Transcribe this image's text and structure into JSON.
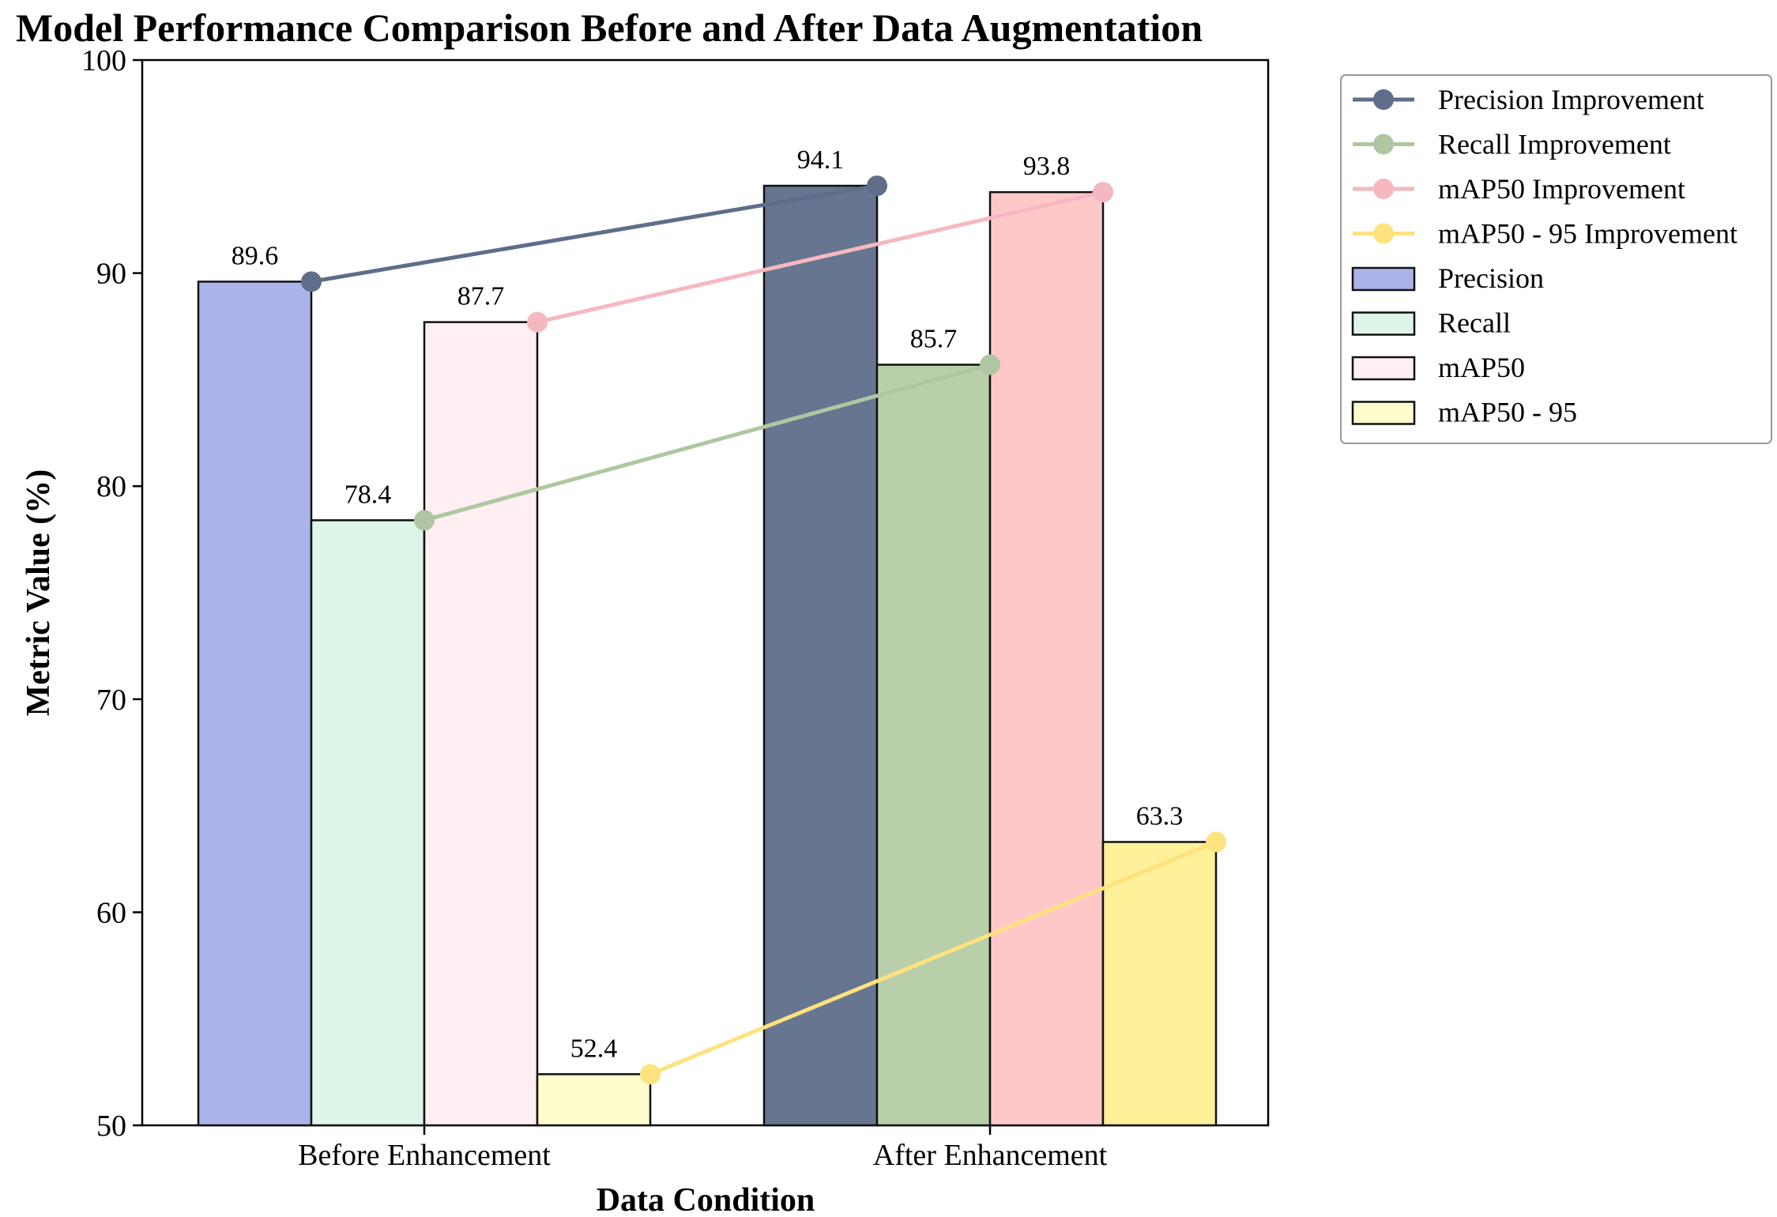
{
  "chart_data": {
    "type": "bar",
    "title": "Model Performance Comparison Before and After Data Augmentation",
    "xlabel": "Data Condition",
    "ylabel": "Metric Value (%)",
    "ylim": [
      50,
      100
    ],
    "yticks": [
      50,
      60,
      70,
      80,
      90,
      100
    ],
    "categories": [
      "Before Enhancement",
      "After Enhancement"
    ],
    "series": [
      {
        "name": "Precision",
        "values": [
          89.6,
          94.1
        ],
        "colors": [
          "#aab4ea",
          "#667590"
        ]
      },
      {
        "name": "Recall",
        "values": [
          78.4,
          85.7
        ],
        "colors": [
          "#def5ea",
          "#b9cfaa"
        ]
      },
      {
        "name": "mAP50",
        "values": [
          87.7,
          93.8
        ],
        "colors": [
          "#ffeef2",
          "#ffc8c8"
        ]
      },
      {
        "name": "mAP50 - 95",
        "values": [
          52.4,
          63.3
        ],
        "colors": [
          "#fffccd",
          "#fff09a"
        ]
      }
    ],
    "improvement_lines": [
      {
        "name": "Precision Improvement",
        "series": "Precision",
        "color": "#5e6d8a"
      },
      {
        "name": "Recall Improvement",
        "series": "Recall",
        "color": "#b0c6a2"
      },
      {
        "name": "mAP50 Improvement",
        "series": "mAP50",
        "color": "#f6b8c0"
      },
      {
        "name": "mAP50 - 95 Improvement",
        "series": "mAP50 - 95",
        "color": "#fde27e"
      }
    ],
    "legend": {
      "placement": "outside-upper-right",
      "entries": [
        {
          "label": "Precision Improvement",
          "kind": "line",
          "color": "#5e6d8a"
        },
        {
          "label": "Recall Improvement",
          "kind": "line",
          "color": "#b0c6a2"
        },
        {
          "label": "mAP50 Improvement",
          "kind": "line",
          "color": "#f6b8c0"
        },
        {
          "label": "mAP50 - 95 Improvement",
          "kind": "line",
          "color": "#fde27e"
        },
        {
          "label": "Precision",
          "kind": "bar",
          "color": "#aab4ea"
        },
        {
          "label": "Recall",
          "kind": "bar",
          "color": "#def5ea"
        },
        {
          "label": "mAP50",
          "kind": "bar",
          "color": "#ffeef2"
        },
        {
          "label": "mAP50 - 95",
          "kind": "bar",
          "color": "#fffccd"
        }
      ]
    },
    "grid": false
  }
}
